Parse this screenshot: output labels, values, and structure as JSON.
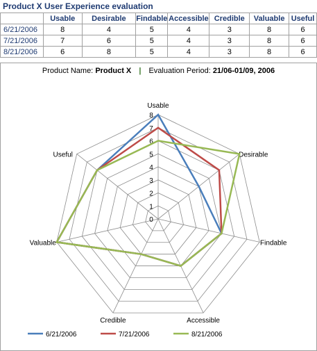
{
  "sheet": {
    "title": "Product X User Experience evaluation"
  },
  "table": {
    "headers": [
      "Usable",
      "Desirable",
      "Findable",
      "Accessible",
      "Credible",
      "Valuable",
      "Useful"
    ],
    "rows": [
      {
        "date": "6/21/2006",
        "values": [
          "8",
          "4",
          "5",
          "4",
          "3",
          "8",
          "6"
        ]
      },
      {
        "date": "7/21/2006",
        "values": [
          "7",
          "6",
          "5",
          "4",
          "3",
          "8",
          "6"
        ]
      },
      {
        "date": "8/21/2006",
        "values": [
          "6",
          "8",
          "5",
          "4",
          "3",
          "8",
          "6"
        ]
      }
    ]
  },
  "chart_subtitle": {
    "product_label": "Product  Name:",
    "product_value": "Product  X",
    "separator": "|",
    "period_label": "Evaluation  Period:",
    "period_value": "21/06-01/09,  2006"
  },
  "chart_data": {
    "type": "radar",
    "categories": [
      "Usable",
      "Desirable",
      "Findable",
      "Accessible",
      "Credible",
      "Valuable",
      "Useful"
    ],
    "rlim": [
      0,
      8
    ],
    "ticks": [
      "0",
      "1",
      "2",
      "3",
      "4",
      "5",
      "6",
      "7",
      "8"
    ],
    "grid": true,
    "legend": "bottom",
    "series": [
      {
        "name": "6/21/2006",
        "color": "#4a7ebb",
        "values": [
          8,
          4,
          5,
          4,
          3,
          8,
          6
        ]
      },
      {
        "name": "7/21/2006",
        "color": "#be4b48",
        "values": [
          7,
          6,
          5,
          4,
          3,
          8,
          6
        ]
      },
      {
        "name": "8/21/2006",
        "color": "#98b954",
        "values": [
          6,
          8,
          5,
          4,
          3,
          8,
          6
        ]
      }
    ]
  }
}
